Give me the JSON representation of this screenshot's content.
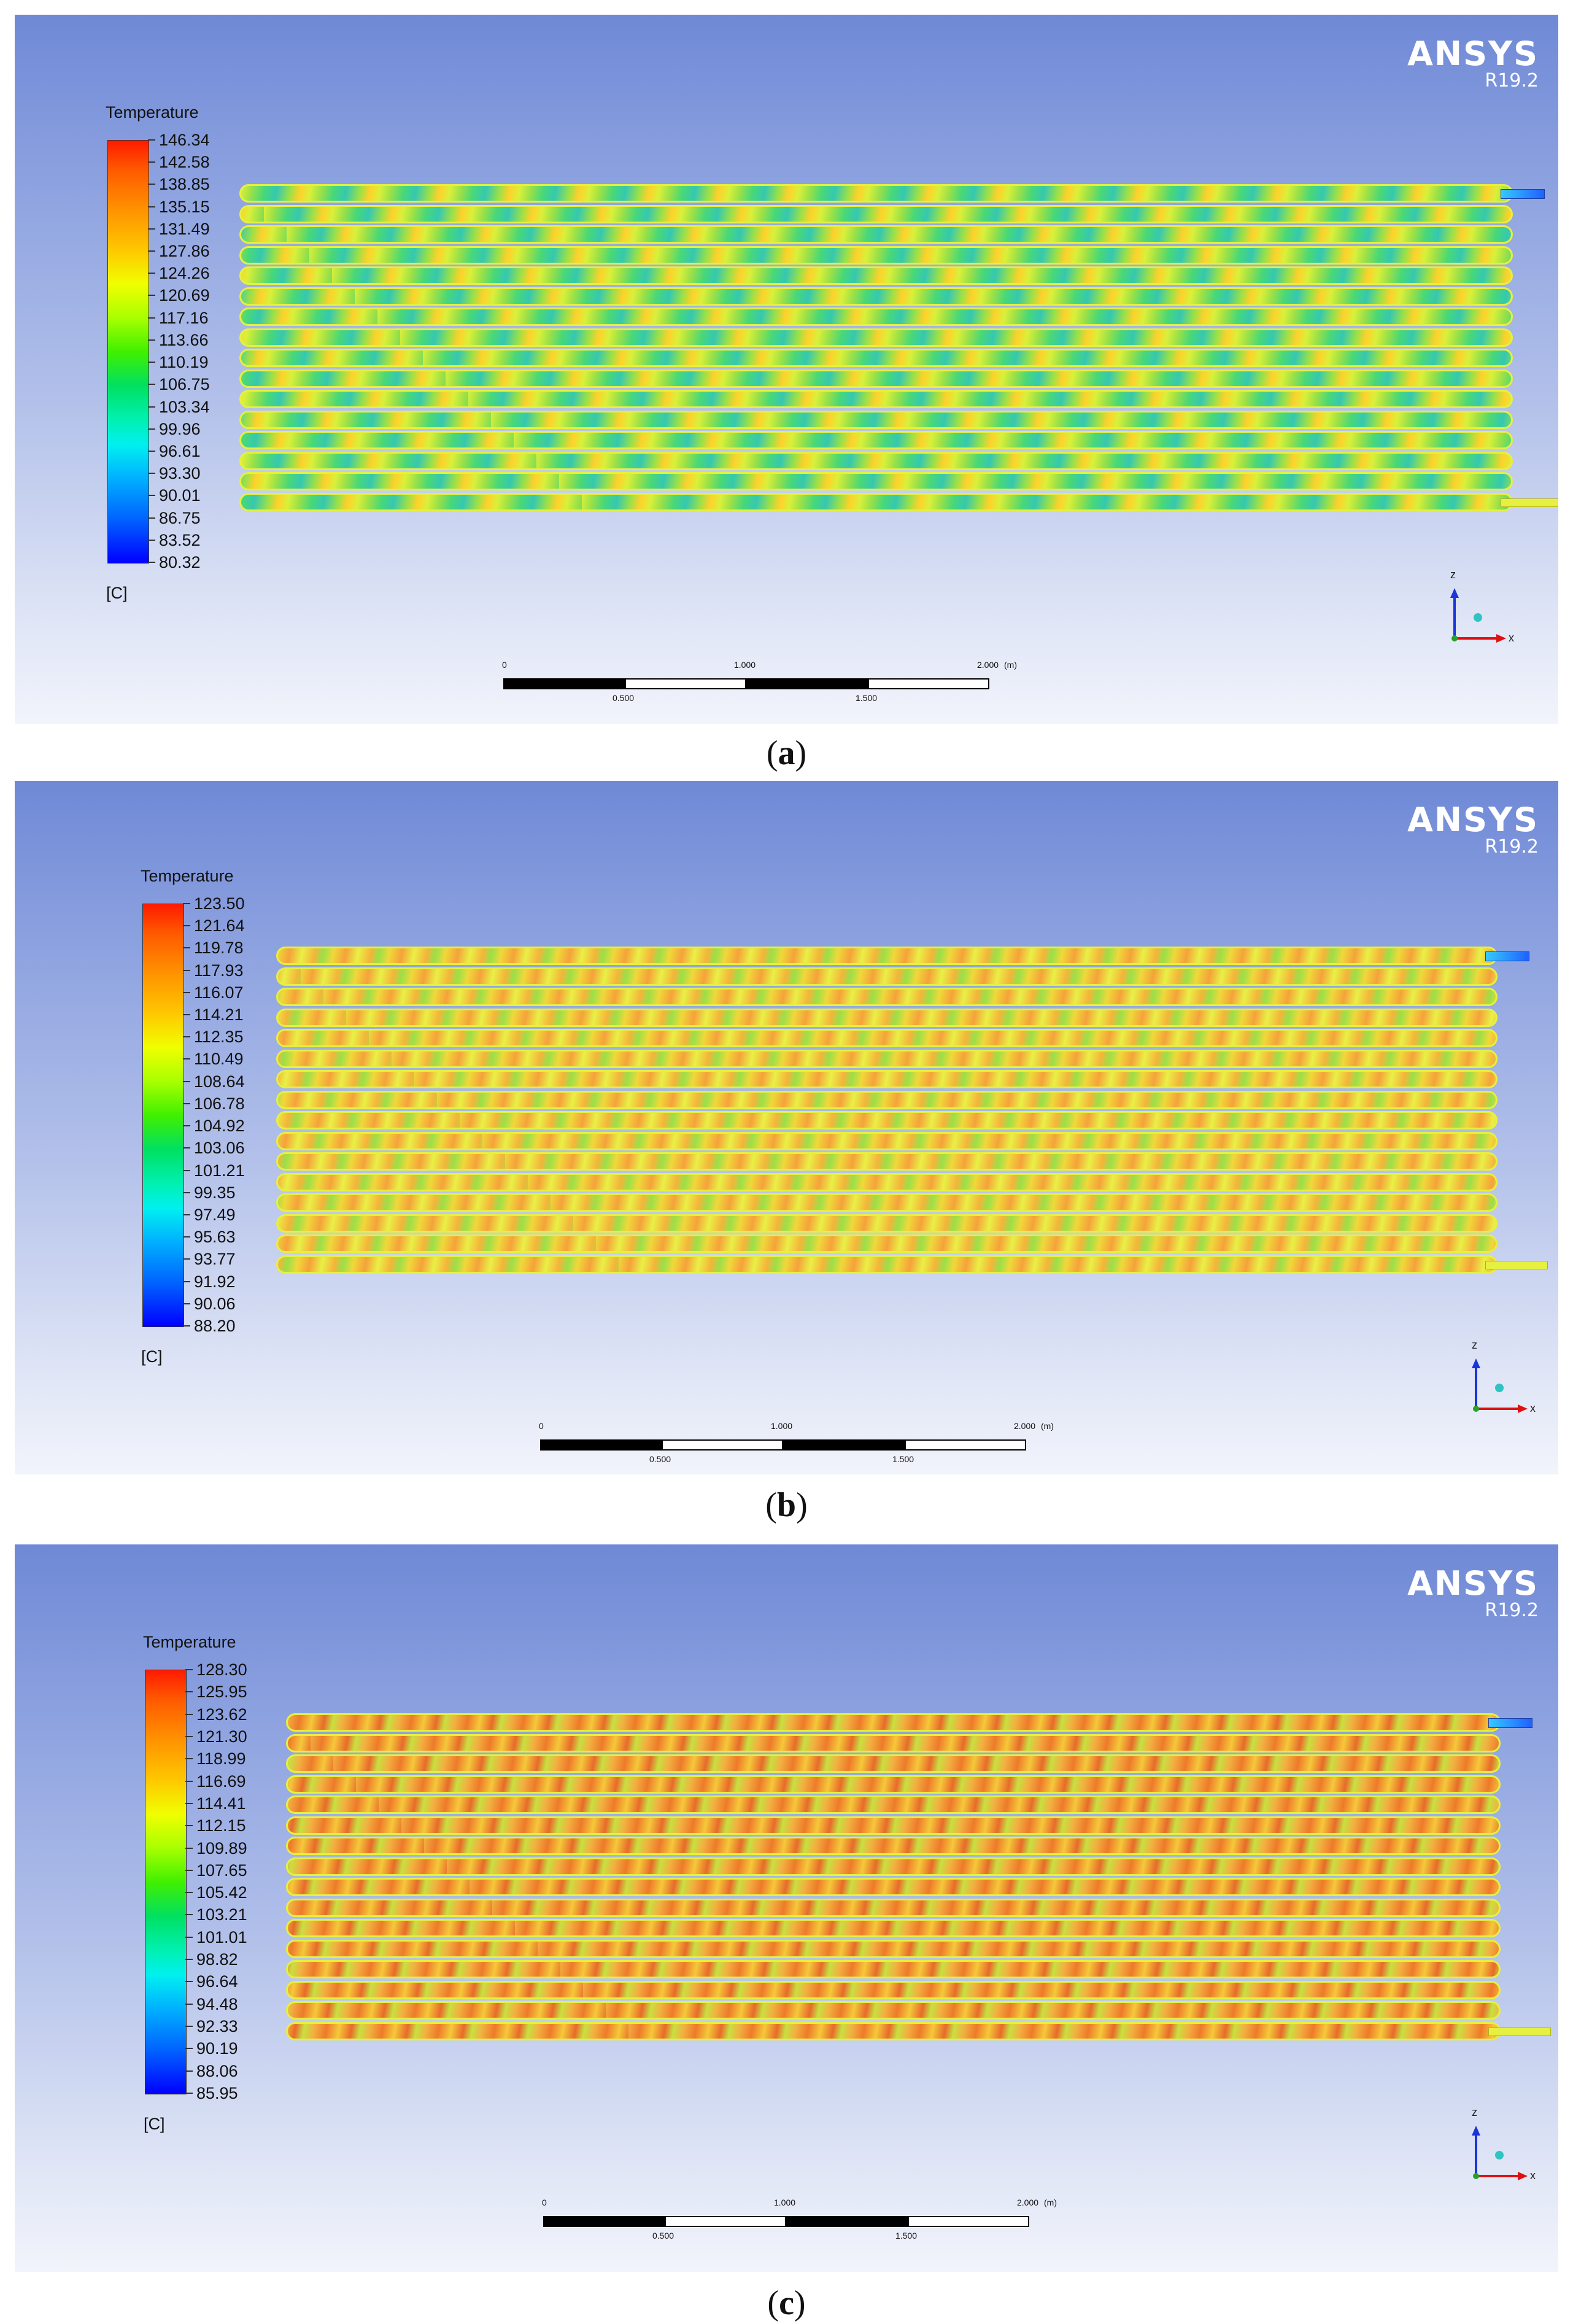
{
  "panels": [
    {
      "brand": "ANSYS",
      "version": "R19.2",
      "legend_title": "Temperature",
      "legend_unit": "[C]",
      "legend_values": [
        "146.34",
        "142.58",
        "138.85",
        "135.15",
        "131.49",
        "127.86",
        "124.26",
        "120.69",
        "117.16",
        "113.66",
        "110.19",
        "106.75",
        "103.34",
        "99.96",
        "96.61",
        "93.30",
        "90.01",
        "86.75",
        "83.52",
        "80.32"
      ],
      "scale": {
        "start": "0",
        "mid": "1.000",
        "end": "2.000",
        "unit": "(m)",
        "q1": "0.500",
        "q3": "1.500"
      },
      "axes": {
        "z": "z",
        "x": "x"
      },
      "caption_open": "(",
      "caption_letter": "a",
      "caption_close": ")"
    },
    {
      "brand": "ANSYS",
      "version": "R19.2",
      "legend_title": "Temperature",
      "legend_unit": "[C]",
      "legend_values": [
        "123.50",
        "121.64",
        "119.78",
        "117.93",
        "116.07",
        "114.21",
        "112.35",
        "110.49",
        "108.64",
        "106.78",
        "104.92",
        "103.06",
        "101.21",
        "99.35",
        "97.49",
        "95.63",
        "93.77",
        "91.92",
        "90.06",
        "88.20"
      ],
      "scale": {
        "start": "0",
        "mid": "1.000",
        "end": "2.000",
        "unit": "(m)",
        "q1": "0.500",
        "q3": "1.500"
      },
      "axes": {
        "z": "z",
        "x": "x"
      },
      "caption_open": "(",
      "caption_letter": "b",
      "caption_close": ")"
    },
    {
      "brand": "ANSYS",
      "version": "R19.2",
      "legend_title": "Temperature",
      "legend_unit": "[C]",
      "legend_values": [
        "128.30",
        "125.95",
        "123.62",
        "121.30",
        "118.99",
        "116.69",
        "114.41",
        "112.15",
        "109.89",
        "107.65",
        "105.42",
        "103.21",
        "101.01",
        "98.82",
        "96.64",
        "94.48",
        "92.33",
        "90.19",
        "88.06",
        "85.95"
      ],
      "scale": {
        "start": "0",
        "mid": "1.000",
        "end": "2.000",
        "unit": "(m)",
        "q1": "0.500",
        "q3": "1.500"
      },
      "axes": {
        "z": "z",
        "x": "x"
      },
      "caption_open": "(",
      "caption_letter": "c",
      "caption_close": ")"
    }
  ],
  "colors": {
    "panel_top": "#6f89d6",
    "panel_bottom": "#f2f4fb",
    "legend_high": "#ff1a00",
    "legend_low": "#0000ff"
  }
}
